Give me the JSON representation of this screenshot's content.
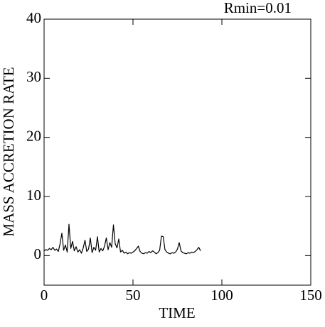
{
  "chart_data": {
    "type": "line",
    "annotation": "Rmin=0.01",
    "xlabel": "TIME",
    "ylabel": "MASS ACCRETION RATE",
    "xlim": [
      0,
      150
    ],
    "xticks": [
      0,
      50,
      100,
      150
    ],
    "ylim": [
      -5,
      40
    ],
    "yticks": [
      0,
      10,
      20,
      30,
      40
    ],
    "grid": false,
    "series": [
      {
        "color": "#000000",
        "x": [
          0,
          1,
          2,
          3,
          4,
          5,
          6,
          7,
          8,
          9,
          10,
          11,
          12,
          13,
          14,
          15,
          16,
          17,
          18,
          19,
          20,
          21,
          22,
          23,
          24,
          25,
          26,
          27,
          28,
          29,
          30,
          31,
          32,
          33,
          34,
          35,
          36,
          37,
          38,
          39,
          40,
          41,
          42,
          43,
          44,
          45,
          46,
          47,
          48,
          49,
          50,
          51,
          52,
          53,
          54,
          55,
          56,
          57,
          58,
          59,
          60,
          61,
          62,
          63,
          64,
          65,
          66,
          67,
          68,
          69,
          70,
          71,
          72,
          73,
          74,
          75,
          76,
          77,
          78,
          79,
          80,
          81,
          82,
          83,
          84,
          85,
          86,
          87,
          88
        ],
        "values": [
          0.8,
          1.0,
          0.9,
          1.2,
          1.0,
          1.4,
          0.9,
          1.1,
          0.7,
          2.0,
          3.8,
          0.9,
          1.8,
          0.6,
          5.3,
          1.2,
          2.4,
          0.8,
          1.5,
          0.6,
          1.0,
          0.4,
          1.3,
          2.6,
          0.7,
          1.1,
          3.0,
          0.5,
          1.4,
          0.9,
          3.2,
          0.6,
          1.2,
          0.8,
          1.6,
          3.0,
          1.0,
          2.2,
          1.4,
          5.2,
          2.0,
          1.3,
          2.8,
          0.6,
          0.9,
          0.4,
          0.6,
          0.3,
          0.5,
          0.4,
          0.6,
          0.8,
          1.2,
          1.6,
          0.7,
          0.4,
          0.3,
          0.5,
          0.4,
          0.7,
          0.5,
          0.8,
          0.6,
          0.3,
          0.5,
          0.9,
          3.3,
          3.2,
          1.0,
          0.6,
          0.4,
          0.3,
          0.5,
          0.4,
          0.6,
          1.1,
          2.2,
          0.8,
          0.5,
          0.4,
          0.3,
          0.5,
          0.4,
          0.6,
          0.5,
          0.7,
          1.0,
          1.4,
          0.8
        ]
      }
    ]
  }
}
